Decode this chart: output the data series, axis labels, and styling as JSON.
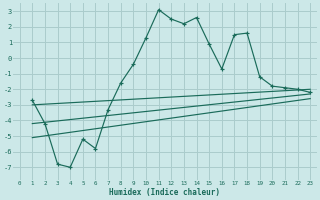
{
  "xlabel": "Humidex (Indice chaleur)",
  "bg_color": "#cce8e8",
  "grid_color": "#aacccc",
  "line_color": "#1a6b5a",
  "xlim": [
    -0.5,
    23.5
  ],
  "ylim": [
    -7.8,
    3.5
  ],
  "xticks": [
    0,
    1,
    2,
    3,
    4,
    5,
    6,
    7,
    8,
    9,
    10,
    11,
    12,
    13,
    14,
    15,
    16,
    17,
    18,
    19,
    20,
    21,
    22,
    23
  ],
  "yticks": [
    -7,
    -6,
    -5,
    -4,
    -3,
    -2,
    -1,
    0,
    1,
    2,
    3
  ],
  "main_line_x": [
    1,
    2,
    3,
    4,
    5,
    6,
    7,
    8,
    9,
    10,
    11,
    12,
    13,
    14,
    15,
    16,
    17,
    18,
    19,
    20,
    21,
    22,
    23
  ],
  "main_line_y": [
    -2.7,
    -4.2,
    -6.8,
    -7.0,
    -5.2,
    -5.8,
    -3.3,
    -1.6,
    -0.4,
    1.3,
    3.1,
    2.5,
    2.2,
    2.6,
    0.9,
    -0.7,
    1.5,
    1.6,
    -1.2,
    -1.8,
    -1.9,
    -2.0,
    -2.2
  ],
  "line2_x": [
    1,
    23
  ],
  "line2_y": [
    -3.0,
    -2.0
  ],
  "line3_x": [
    1,
    23
  ],
  "line3_y": [
    -4.2,
    -2.3
  ],
  "line4_x": [
    1,
    23
  ],
  "line4_y": [
    -5.1,
    -2.6
  ]
}
